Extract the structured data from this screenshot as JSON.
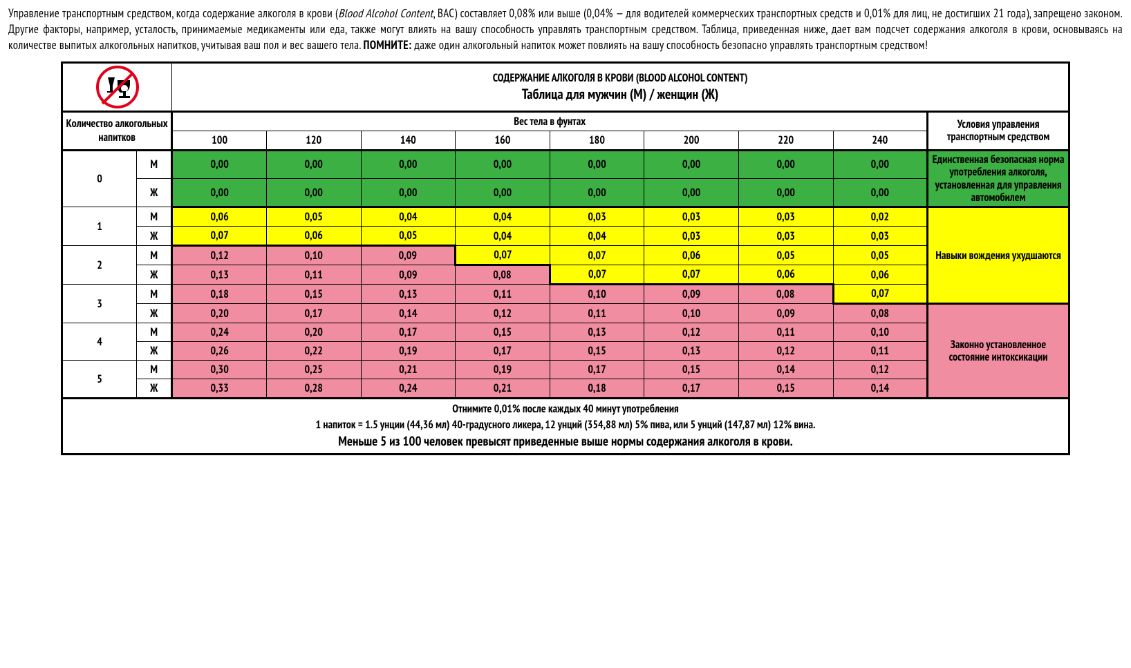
{
  "intro": {
    "p1a": "Управление транспортным средством, когда содержание алкоголя в крови (",
    "p1i": "Blood Alcohol Content",
    "p1b": ", BAC) составляет 0,08% или выше (0,04% — для водителей коммерческих транспортных средств и 0,01% для лиц, не достигших 21 года), запрещено законом. Другие факторы, например, усталость, принимаемые медикаменты или еда, также могут влиять на вашу способность управлять транспортным средством. Таблица, приведенная ниже, дает вам подсчет содержания алкоголя в крови, основываясь на количестве выпитых алкогольных напитков, учитывая ваш пол и вес вашего тела. ",
    "p1s": "ПОМНИТЕ:",
    "p1c": " даже один алкогольный напиток может повлиять на вашу способность безопасно управлять транспортным средством!"
  },
  "colors": {
    "green": "#3cb043",
    "yellow": "#ffff00",
    "pink": "#f08da0"
  },
  "title": "СОДЕРЖАНИЕ АЛКОГОЛЯ В КРОВИ (BLOOD ALCOHOL CONTENT)",
  "subtitle": "Таблица для мужчин (М) / женщин (Ж)",
  "headers": {
    "drinks": "Количество алкогольных напитков",
    "weight": "Вес тела в фунтах",
    "condition": "Условия управления транспортным средством",
    "weights": [
      "100",
      "120",
      "140",
      "160",
      "180",
      "200",
      "220",
      "240"
    ],
    "M": "М",
    "F": "Ж"
  },
  "conditions": {
    "safe": "Единственная безопасная норма употребления алкоголя, установленная для управления автомобилем",
    "impaired": "Навыки вождения ухудшаются",
    "intox": "Законно установленное состояние интоксикации"
  },
  "drinks": [
    "0",
    "1",
    "2",
    "3",
    "4",
    "5"
  ],
  "rows": [
    {
      "g": "M",
      "v": [
        "0,00",
        "0,00",
        "0,00",
        "0,00",
        "0,00",
        "0,00",
        "0,00",
        "0,00"
      ],
      "c": [
        "g",
        "g",
        "g",
        "g",
        "g",
        "g",
        "g",
        "g"
      ]
    },
    {
      "g": "F",
      "v": [
        "0,00",
        "0,00",
        "0,00",
        "0,00",
        "0,00",
        "0,00",
        "0,00",
        "0,00"
      ],
      "c": [
        "g",
        "g",
        "g",
        "g",
        "g",
        "g",
        "g",
        "g"
      ]
    },
    {
      "g": "M",
      "v": [
        "0,06",
        "0,05",
        "0,04",
        "0,04",
        "0,03",
        "0,03",
        "0,03",
        "0,02"
      ],
      "c": [
        "y",
        "y",
        "y",
        "y",
        "y",
        "y",
        "y",
        "y"
      ]
    },
    {
      "g": "F",
      "v": [
        "0,07",
        "0,06",
        "0,05",
        "0,04",
        "0,04",
        "0,03",
        "0,03",
        "0,03"
      ],
      "c": [
        "y",
        "y",
        "y",
        "y",
        "y",
        "y",
        "y",
        "y"
      ]
    },
    {
      "g": "M",
      "v": [
        "0,12",
        "0,10",
        "0,09",
        "0,07",
        "0,07",
        "0,06",
        "0,05",
        "0,05"
      ],
      "c": [
        "p",
        "p",
        "p",
        "y",
        "y",
        "y",
        "y",
        "y"
      ]
    },
    {
      "g": "F",
      "v": [
        "0,13",
        "0,11",
        "0,09",
        "0,08",
        "0,07",
        "0,07",
        "0,06",
        "0,06"
      ],
      "c": [
        "p",
        "p",
        "p",
        "p",
        "y",
        "y",
        "y",
        "y"
      ]
    },
    {
      "g": "M",
      "v": [
        "0,18",
        "0,15",
        "0,13",
        "0,11",
        "0,10",
        "0,09",
        "0,08",
        "0,07"
      ],
      "c": [
        "p",
        "p",
        "p",
        "p",
        "p",
        "p",
        "p",
        "y"
      ]
    },
    {
      "g": "F",
      "v": [
        "0,20",
        "0,17",
        "0,14",
        "0,12",
        "0,11",
        "0,10",
        "0,09",
        "0,08"
      ],
      "c": [
        "p",
        "p",
        "p",
        "p",
        "p",
        "p",
        "p",
        "p"
      ]
    },
    {
      "g": "M",
      "v": [
        "0,24",
        "0,20",
        "0,17",
        "0,15",
        "0,13",
        "0,12",
        "0,11",
        "0,10"
      ],
      "c": [
        "p",
        "p",
        "p",
        "p",
        "p",
        "p",
        "p",
        "p"
      ]
    },
    {
      "g": "F",
      "v": [
        "0,26",
        "0,22",
        "0,19",
        "0,17",
        "0,15",
        "0,13",
        "0,12",
        "0,11"
      ],
      "c": [
        "p",
        "p",
        "p",
        "p",
        "p",
        "p",
        "p",
        "p"
      ]
    },
    {
      "g": "M",
      "v": [
        "0,30",
        "0,25",
        "0,21",
        "0,19",
        "0,17",
        "0,15",
        "0,14",
        "0,12"
      ],
      "c": [
        "p",
        "p",
        "p",
        "p",
        "p",
        "p",
        "p",
        "p"
      ]
    },
    {
      "g": "F",
      "v": [
        "0,33",
        "0,28",
        "0,24",
        "0,21",
        "0,18",
        "0,17",
        "0,15",
        "0,14"
      ],
      "c": [
        "p",
        "p",
        "p",
        "p",
        "p",
        "p",
        "p",
        "p"
      ]
    }
  ],
  "footer": {
    "l1": "Отнимите 0,01% после каждых 40 минут употребления",
    "l2": "1 напиток = 1.5 унции (44,36 мл) 40-градусного ликера, 12 унций (354,88 мл) 5% пива, или 5 унций (147,87 мл) 12% вина.",
    "l3": "Меньше 5 из 100 человек превысят приведенные выше нормы содержания алкоголя в крови."
  },
  "thickBorders": {
    "greenBlock": {
      "rows": [
        0,
        1
      ],
      "cols": [
        0,
        7
      ]
    },
    "pinkOutline": [
      {
        "r": 4,
        "cols": [
          0,
          2
        ],
        "sides": [
          "t",
          "l",
          "b"
        ]
      },
      {
        "r": 4,
        "cols": [
          2,
          2
        ],
        "sides": [
          "r"
        ]
      },
      {
        "r": 5,
        "cols": [
          0,
          3
        ],
        "sides": [
          "l",
          "b"
        ]
      },
      {
        "r": 5,
        "cols": [
          3,
          3
        ],
        "sides": [
          "t",
          "r"
        ]
      },
      {
        "r": 6,
        "cols": [
          0,
          6
        ],
        "sides": []
      },
      {
        "r": 6,
        "cols": [
          4,
          6
        ],
        "sides": [
          "t"
        ]
      },
      {
        "r": 6,
        "cols": [
          7,
          7
        ],
        "sides": [
          "r",
          "b"
        ]
      },
      {
        "r": 7,
        "cols": [
          7,
          7
        ],
        "sides": [
          "t"
        ]
      }
    ]
  }
}
